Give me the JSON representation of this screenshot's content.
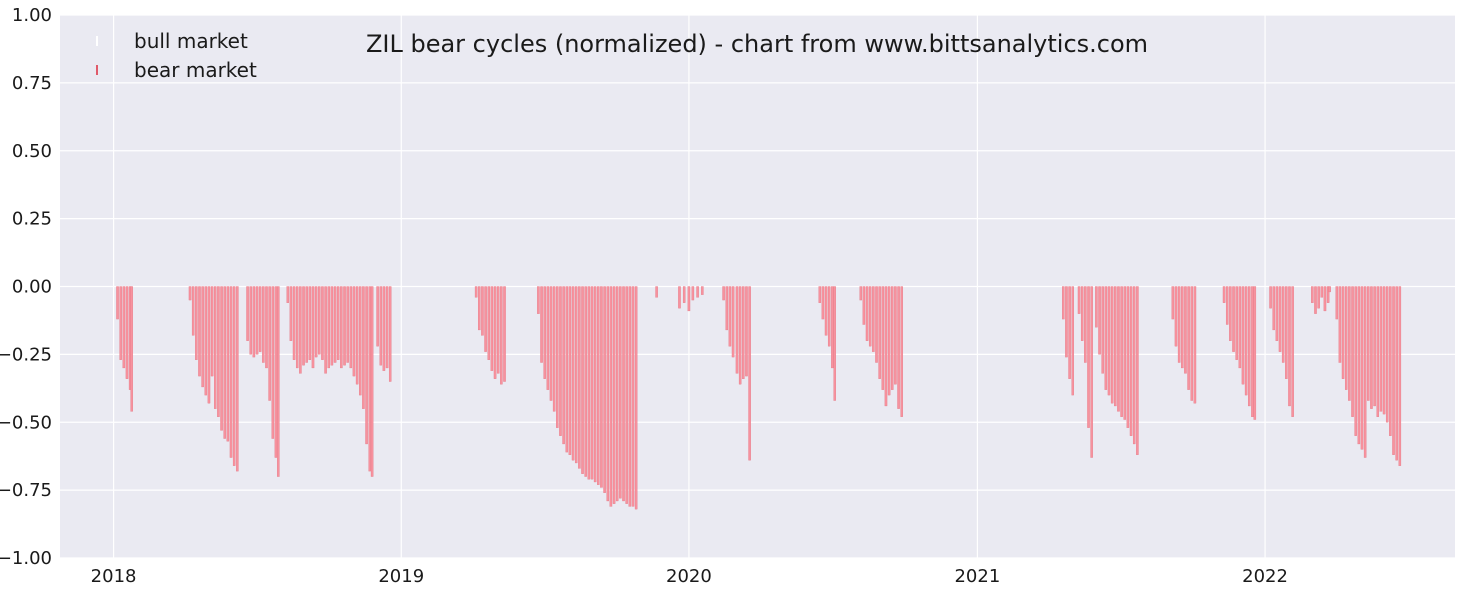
{
  "chart_data": {
    "type": "bar",
    "title": "ZIL bear cycles (normalized)  - chart from www.bittsanalytics.com",
    "xlabel": "",
    "ylabel": "",
    "ylim": [
      -1.0,
      1.0
    ],
    "xlim": [
      "2017-10-25",
      "2022-08-30"
    ],
    "yticks": [
      1.0,
      0.75,
      0.5,
      0.25,
      0.0,
      -0.25,
      -0.5,
      -0.75,
      -1.0
    ],
    "ytick_labels": [
      "1.00",
      "0.75",
      "0.50",
      "0.25",
      "0.00",
      "−0.25",
      "−0.50",
      "−0.75",
      "−1.00"
    ],
    "xticks": [
      "2018-01-01",
      "2019-01-01",
      "2020-01-01",
      "2021-01-01",
      "2022-01-01"
    ],
    "xtick_labels": [
      "2018",
      "2019",
      "2020",
      "2021",
      "2022"
    ],
    "grid": true,
    "legend_position": "top-left",
    "colors": {
      "bear": "#f7929e",
      "bear_edge": "#e0707e",
      "bull": "#ffffff",
      "background": "#eaeaf2"
    },
    "series": [
      {
        "name": "bull market",
        "values": []
      },
      {
        "name": "bear market",
        "points": [
          [
            "2018-01-06",
            -0.12
          ],
          [
            "2018-01-10",
            -0.27
          ],
          [
            "2018-01-14",
            -0.3
          ],
          [
            "2018-01-18",
            -0.34
          ],
          [
            "2018-01-22",
            -0.38
          ],
          [
            "2018-01-24",
            -0.46
          ],
          [
            "2018-04-08",
            -0.05
          ],
          [
            "2018-04-12",
            -0.18
          ],
          [
            "2018-04-16",
            -0.27
          ],
          [
            "2018-04-20",
            -0.33
          ],
          [
            "2018-04-24",
            -0.37
          ],
          [
            "2018-04-28",
            -0.4
          ],
          [
            "2018-05-02",
            -0.43
          ],
          [
            "2018-05-06",
            -0.33
          ],
          [
            "2018-05-10",
            -0.45
          ],
          [
            "2018-05-14",
            -0.48
          ],
          [
            "2018-05-18",
            -0.53
          ],
          [
            "2018-05-22",
            -0.56
          ],
          [
            "2018-05-26",
            -0.57
          ],
          [
            "2018-05-30",
            -0.63
          ],
          [
            "2018-06-03",
            -0.66
          ],
          [
            "2018-06-07",
            -0.68
          ],
          [
            "2018-06-20",
            -0.2
          ],
          [
            "2018-06-24",
            -0.25
          ],
          [
            "2018-06-28",
            -0.26
          ],
          [
            "2018-07-02",
            -0.25
          ],
          [
            "2018-07-06",
            -0.24
          ],
          [
            "2018-07-10",
            -0.28
          ],
          [
            "2018-07-14",
            -0.3
          ],
          [
            "2018-07-18",
            -0.42
          ],
          [
            "2018-07-22",
            -0.56
          ],
          [
            "2018-07-26",
            -0.63
          ],
          [
            "2018-07-29",
            -0.7
          ],
          [
            "2018-08-10",
            -0.06
          ],
          [
            "2018-08-14",
            -0.2
          ],
          [
            "2018-08-18",
            -0.27
          ],
          [
            "2018-08-22",
            -0.3
          ],
          [
            "2018-08-26",
            -0.32
          ],
          [
            "2018-08-30",
            -0.29
          ],
          [
            "2018-09-03",
            -0.28
          ],
          [
            "2018-09-07",
            -0.27
          ],
          [
            "2018-09-11",
            -0.3
          ],
          [
            "2018-09-15",
            -0.26
          ],
          [
            "2018-09-19",
            -0.25
          ],
          [
            "2018-09-23",
            -0.27
          ],
          [
            "2018-09-27",
            -0.32
          ],
          [
            "2018-10-01",
            -0.3
          ],
          [
            "2018-10-05",
            -0.29
          ],
          [
            "2018-10-09",
            -0.28
          ],
          [
            "2018-10-13",
            -0.27
          ],
          [
            "2018-10-17",
            -0.3
          ],
          [
            "2018-10-21",
            -0.29
          ],
          [
            "2018-10-25",
            -0.28
          ],
          [
            "2018-10-29",
            -0.3
          ],
          [
            "2018-11-02",
            -0.33
          ],
          [
            "2018-11-06",
            -0.36
          ],
          [
            "2018-11-10",
            -0.4
          ],
          [
            "2018-11-14",
            -0.45
          ],
          [
            "2018-11-18",
            -0.58
          ],
          [
            "2018-11-22",
            -0.68
          ],
          [
            "2018-11-25",
            -0.7
          ],
          [
            "2018-12-02",
            -0.22
          ],
          [
            "2018-12-06",
            -0.29
          ],
          [
            "2018-12-10",
            -0.31
          ],
          [
            "2018-12-14",
            -0.3
          ],
          [
            "2018-12-18",
            -0.35
          ],
          [
            "2019-04-06",
            -0.04
          ],
          [
            "2019-04-10",
            -0.16
          ],
          [
            "2019-04-14",
            -0.18
          ],
          [
            "2019-04-18",
            -0.24
          ],
          [
            "2019-04-22",
            -0.27
          ],
          [
            "2019-04-26",
            -0.31
          ],
          [
            "2019-04-30",
            -0.34
          ],
          [
            "2019-05-04",
            -0.32
          ],
          [
            "2019-05-08",
            -0.36
          ],
          [
            "2019-05-12",
            -0.35
          ],
          [
            "2019-06-24",
            -0.1
          ],
          [
            "2019-06-28",
            -0.28
          ],
          [
            "2019-07-02",
            -0.34
          ],
          [
            "2019-07-06",
            -0.38
          ],
          [
            "2019-07-10",
            -0.42
          ],
          [
            "2019-07-14",
            -0.46
          ],
          [
            "2019-07-18",
            -0.52
          ],
          [
            "2019-07-22",
            -0.55
          ],
          [
            "2019-07-26",
            -0.58
          ],
          [
            "2019-07-30",
            -0.61
          ],
          [
            "2019-08-03",
            -0.62
          ],
          [
            "2019-08-07",
            -0.64
          ],
          [
            "2019-08-11",
            -0.65
          ],
          [
            "2019-08-15",
            -0.67
          ],
          [
            "2019-08-19",
            -0.69
          ],
          [
            "2019-08-23",
            -0.7
          ],
          [
            "2019-08-27",
            -0.71
          ],
          [
            "2019-08-31",
            -0.71
          ],
          [
            "2019-09-04",
            -0.72
          ],
          [
            "2019-09-08",
            -0.73
          ],
          [
            "2019-09-12",
            -0.74
          ],
          [
            "2019-09-16",
            -0.76
          ],
          [
            "2019-09-20",
            -0.79
          ],
          [
            "2019-09-24",
            -0.81
          ],
          [
            "2019-09-28",
            -0.8
          ],
          [
            "2019-10-02",
            -0.79
          ],
          [
            "2019-10-06",
            -0.78
          ],
          [
            "2019-10-10",
            -0.79
          ],
          [
            "2019-10-14",
            -0.8
          ],
          [
            "2019-10-18",
            -0.81
          ],
          [
            "2019-10-22",
            -0.81
          ],
          [
            "2019-10-26",
            -0.82
          ],
          [
            "2019-11-21",
            -0.04
          ],
          [
            "2019-12-20",
            -0.08
          ],
          [
            "2019-12-26",
            -0.06
          ],
          [
            "2020-01-01",
            -0.09
          ],
          [
            "2020-01-06",
            -0.05
          ],
          [
            "2020-01-12",
            -0.04
          ],
          [
            "2020-01-18",
            -0.03
          ],
          [
            "2020-02-14",
            -0.05
          ],
          [
            "2020-02-18",
            -0.16
          ],
          [
            "2020-02-22",
            -0.22
          ],
          [
            "2020-02-26",
            -0.26
          ],
          [
            "2020-03-02",
            -0.32
          ],
          [
            "2020-03-06",
            -0.36
          ],
          [
            "2020-03-10",
            -0.34
          ],
          [
            "2020-03-14",
            -0.33
          ],
          [
            "2020-03-18",
            -0.64
          ],
          [
            "2020-06-15",
            -0.06
          ],
          [
            "2020-06-19",
            -0.12
          ],
          [
            "2020-06-23",
            -0.18
          ],
          [
            "2020-06-27",
            -0.22
          ],
          [
            "2020-07-01",
            -0.3
          ],
          [
            "2020-07-04",
            -0.42
          ],
          [
            "2020-08-06",
            -0.05
          ],
          [
            "2020-08-10",
            -0.14
          ],
          [
            "2020-08-14",
            -0.2
          ],
          [
            "2020-08-18",
            -0.22
          ],
          [
            "2020-08-22",
            -0.24
          ],
          [
            "2020-08-26",
            -0.28
          ],
          [
            "2020-08-30",
            -0.34
          ],
          [
            "2020-09-03",
            -0.38
          ],
          [
            "2020-09-07",
            -0.44
          ],
          [
            "2020-09-11",
            -0.4
          ],
          [
            "2020-09-15",
            -0.38
          ],
          [
            "2020-09-19",
            -0.36
          ],
          [
            "2020-09-23",
            -0.45
          ],
          [
            "2020-09-27",
            -0.48
          ],
          [
            "2021-04-20",
            -0.12
          ],
          [
            "2021-04-24",
            -0.26
          ],
          [
            "2021-04-28",
            -0.34
          ],
          [
            "2021-05-02",
            -0.4
          ],
          [
            "2021-05-10",
            -0.1
          ],
          [
            "2021-05-14",
            -0.2
          ],
          [
            "2021-05-18",
            -0.28
          ],
          [
            "2021-05-22",
            -0.52
          ],
          [
            "2021-05-26",
            -0.63
          ],
          [
            "2021-06-01",
            -0.15
          ],
          [
            "2021-06-05",
            -0.25
          ],
          [
            "2021-06-09",
            -0.32
          ],
          [
            "2021-06-13",
            -0.38
          ],
          [
            "2021-06-17",
            -0.4
          ],
          [
            "2021-06-21",
            -0.43
          ],
          [
            "2021-06-25",
            -0.44
          ],
          [
            "2021-06-29",
            -0.46
          ],
          [
            "2021-07-03",
            -0.48
          ],
          [
            "2021-07-07",
            -0.49
          ],
          [
            "2021-07-11",
            -0.52
          ],
          [
            "2021-07-15",
            -0.55
          ],
          [
            "2021-07-19",
            -0.58
          ],
          [
            "2021-07-23",
            -0.62
          ],
          [
            "2021-09-06",
            -0.12
          ],
          [
            "2021-09-10",
            -0.22
          ],
          [
            "2021-09-14",
            -0.28
          ],
          [
            "2021-09-18",
            -0.3
          ],
          [
            "2021-09-22",
            -0.32
          ],
          [
            "2021-09-26",
            -0.38
          ],
          [
            "2021-09-30",
            -0.42
          ],
          [
            "2021-10-04",
            -0.43
          ],
          [
            "2021-11-10",
            -0.06
          ],
          [
            "2021-11-14",
            -0.14
          ],
          [
            "2021-11-18",
            -0.2
          ],
          [
            "2021-11-22",
            -0.24
          ],
          [
            "2021-11-26",
            -0.27
          ],
          [
            "2021-11-30",
            -0.3
          ],
          [
            "2021-12-04",
            -0.36
          ],
          [
            "2021-12-08",
            -0.4
          ],
          [
            "2021-12-12",
            -0.44
          ],
          [
            "2021-12-16",
            -0.48
          ],
          [
            "2021-12-19",
            -0.49
          ],
          [
            "2022-01-08",
            -0.08
          ],
          [
            "2022-01-12",
            -0.16
          ],
          [
            "2022-01-16",
            -0.2
          ],
          [
            "2022-01-20",
            -0.24
          ],
          [
            "2022-01-24",
            -0.28
          ],
          [
            "2022-01-28",
            -0.34
          ],
          [
            "2022-02-01",
            -0.44
          ],
          [
            "2022-02-05",
            -0.48
          ],
          [
            "2022-03-02",
            -0.06
          ],
          [
            "2022-03-06",
            -0.1
          ],
          [
            "2022-03-10",
            -0.08
          ],
          [
            "2022-03-14",
            -0.04
          ],
          [
            "2022-03-18",
            -0.09
          ],
          [
            "2022-03-22",
            -0.06
          ],
          [
            "2022-03-24",
            -0.02
          ],
          [
            "2022-04-02",
            -0.12
          ],
          [
            "2022-04-06",
            -0.28
          ],
          [
            "2022-04-10",
            -0.34
          ],
          [
            "2022-04-14",
            -0.38
          ],
          [
            "2022-04-18",
            -0.42
          ],
          [
            "2022-04-22",
            -0.48
          ],
          [
            "2022-04-26",
            -0.55
          ],
          [
            "2022-04-30",
            -0.58
          ],
          [
            "2022-05-04",
            -0.6
          ],
          [
            "2022-05-08",
            -0.63
          ],
          [
            "2022-05-12",
            -0.42
          ],
          [
            "2022-05-16",
            -0.45
          ],
          [
            "2022-05-20",
            -0.44
          ],
          [
            "2022-05-24",
            -0.48
          ],
          [
            "2022-05-28",
            -0.46
          ],
          [
            "2022-06-01",
            -0.47
          ],
          [
            "2022-06-05",
            -0.5
          ],
          [
            "2022-06-09",
            -0.55
          ],
          [
            "2022-06-13",
            -0.62
          ],
          [
            "2022-06-17",
            -0.64
          ],
          [
            "2022-06-21",
            -0.66
          ]
        ]
      }
    ]
  }
}
